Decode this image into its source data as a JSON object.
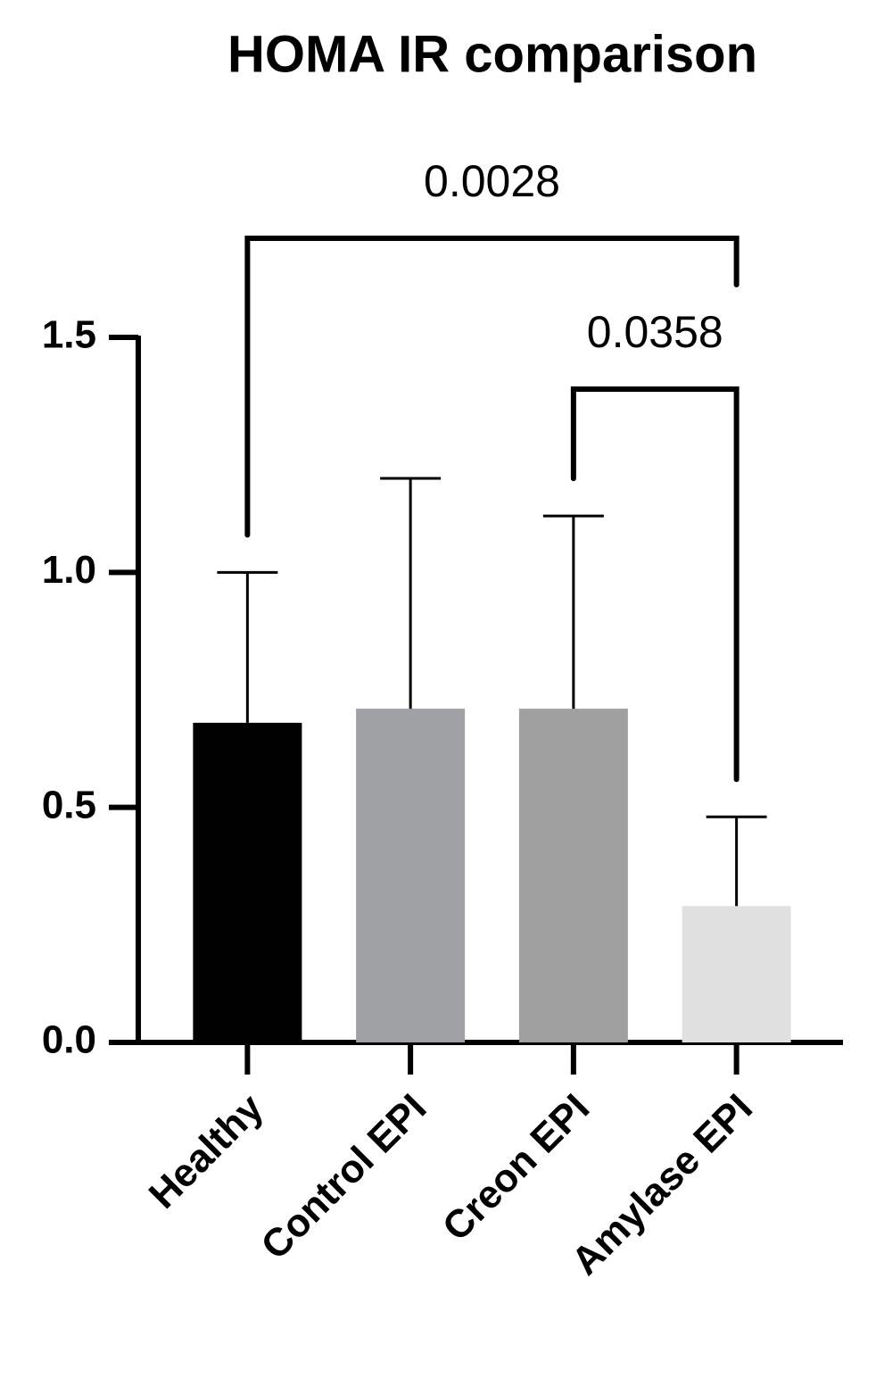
{
  "chart_data": {
    "type": "bar",
    "title": "HOMA IR comparison",
    "categories": [
      "Healthy",
      "Control EPI",
      "Creon EPI",
      "Amylase EPI"
    ],
    "values": [
      0.68,
      0.71,
      0.71,
      0.29
    ],
    "errors": [
      0.32,
      0.49,
      0.41,
      0.19
    ],
    "colors": [
      "#000000",
      "#a0a1a4",
      "#a0a0a0",
      "#e0e0e0"
    ],
    "ylim": [
      0,
      1.5
    ],
    "yticks": [
      {
        "value": 0,
        "label": "0.0"
      },
      0.5,
      {
        "value": 1,
        "label": "1.0"
      },
      1.5
    ],
    "comparisons": [
      {
        "label": "0.0028",
        "groups": [
          "Healthy",
          "Amylase EPI"
        ]
      },
      {
        "label": "0.0358",
        "groups": [
          "Creon EPI",
          "Amylase EPI"
        ]
      }
    ]
  }
}
